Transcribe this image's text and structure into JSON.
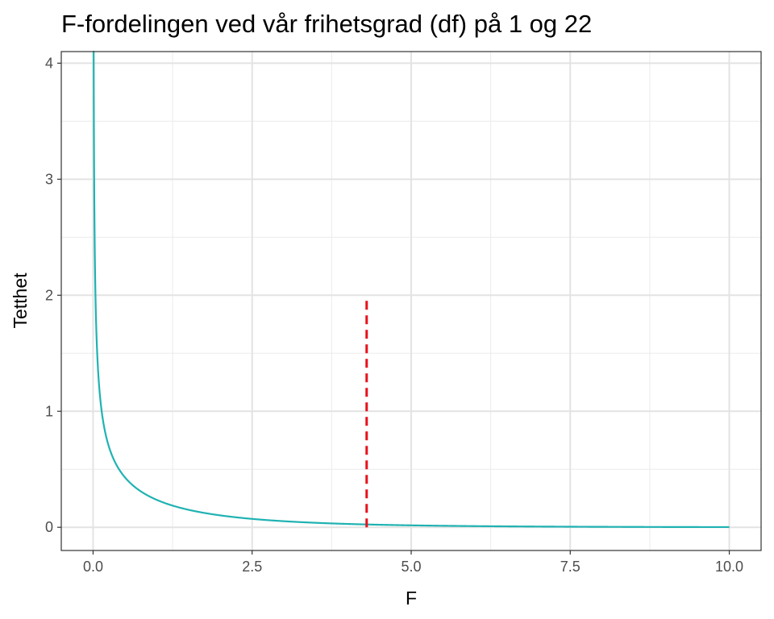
{
  "chart_data": {
    "type": "line",
    "title": "F-fordelingen ved vår frihetsgrad (df) på 1 og 22",
    "xlabel": "F",
    "ylabel": "Tetthet",
    "xlim": [
      -0.5,
      10.5
    ],
    "ylim": [
      -0.2,
      4.1
    ],
    "x_ticks": [
      0,
      2.5,
      5,
      7.5,
      10
    ],
    "x_tick_labels": [
      "0.0",
      "2.5",
      "5.0",
      "7.5",
      "10.0"
    ],
    "y_ticks": [
      0,
      1,
      2,
      3,
      4
    ],
    "y_tick_labels": [
      "0",
      "1",
      "2",
      "3",
      "4"
    ],
    "grid": true,
    "legend": "none",
    "series": [
      {
        "distribution": "F",
        "df1": 1,
        "df2": 22,
        "x_range": [
          0,
          10
        ],
        "color": "#20B2B2",
        "x": [
          0.01,
          0.02,
          0.05,
          0.1,
          0.2,
          0.3,
          0.5,
          0.75,
          1.0,
          1.5,
          2.0,
          2.5,
          3.0,
          4.0,
          5.0,
          6.0,
          7.5,
          10.0
        ],
        "y": [
          3.97,
          2.8,
          1.76,
          1.23,
          0.855,
          0.683,
          0.499,
          0.371,
          0.29,
          0.194,
          0.137,
          0.1,
          0.075,
          0.044,
          0.027,
          0.017,
          0.009,
          0.0035
        ]
      }
    ],
    "annotations": [
      {
        "type": "vline",
        "x": 4.3,
        "y_from": 0,
        "y_to": 2,
        "color": "#E8111B",
        "style": "dashed"
      }
    ]
  }
}
